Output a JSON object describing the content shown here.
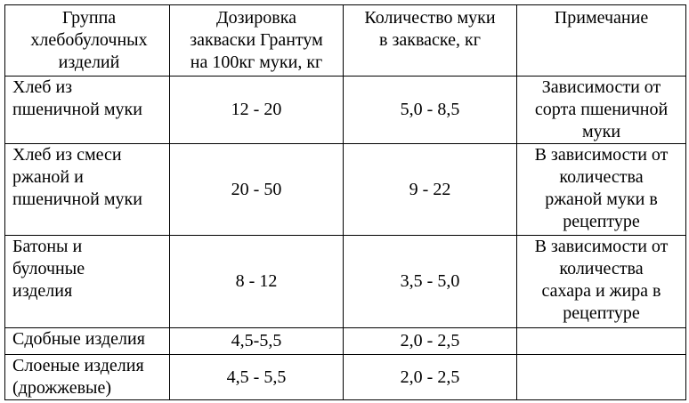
{
  "table": {
    "header": [
      [
        "Группа",
        "хлебобулочных",
        "изделий"
      ],
      [
        "Дозировка",
        "закваски Грантум",
        "на 100кг муки, кг"
      ],
      [
        "Количество муки",
        "в закваске, кг"
      ],
      [
        "Примечание"
      ]
    ],
    "rows": [
      [
        [
          "Хлеб из",
          "пшеничной муки"
        ],
        [
          "12 - 20"
        ],
        [
          "5,0 - 8,5"
        ],
        [
          "Зависимости от",
          "сорта пшеничной",
          "муки"
        ]
      ],
      [
        [
          "Хлеб из смеси",
          "ржаной и",
          "пшеничной муки"
        ],
        [
          "20 - 50"
        ],
        [
          "9 - 22"
        ],
        [
          "В зависимости от",
          "количества",
          "ржаной муки в",
          "рецептуре"
        ]
      ],
      [
        [
          "Батоны и",
          "булочные",
          "изделия"
        ],
        [
          "8 - 12"
        ],
        [
          "3,5 - 5,0"
        ],
        [
          "В зависимости от",
          "количества",
          "сахара и жира в",
          "рецептуре"
        ]
      ],
      [
        [
          "Сдобные изделия"
        ],
        [
          "4,5-5,5"
        ],
        [
          "2,0 - 2,5"
        ]
      ],
      [
        [
          "Слоеные изделия",
          "(дрожжевые)"
        ],
        [
          "4,5 - 5,5"
        ],
        [
          "2,0 - 2,5"
        ]
      ]
    ]
  }
}
